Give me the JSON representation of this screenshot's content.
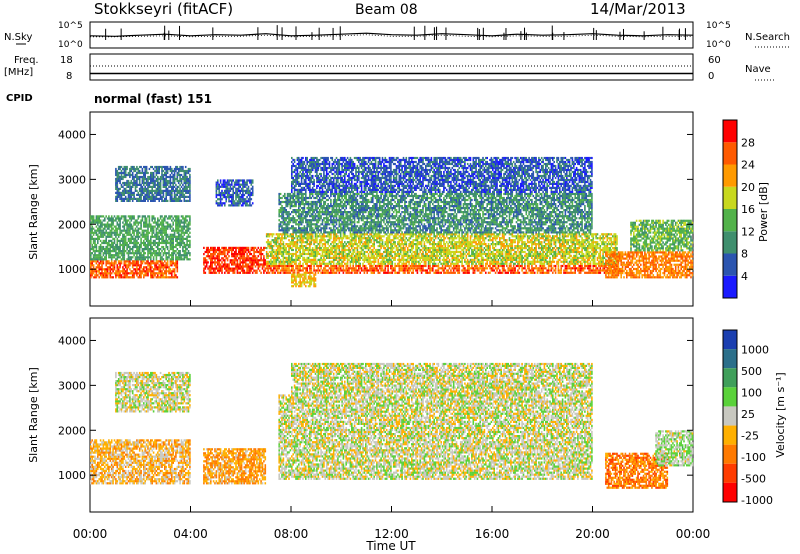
{
  "header": {
    "station": "Stokkseyri (fitACF)",
    "beam": "Beam 08",
    "date": "14/Mar/2013"
  },
  "params": {
    "nsky_label": "N.Sky",
    "nsearch_label": "N.Search",
    "freq_label": "Freq.",
    "freq_unit": "[MHz]",
    "nave_label": "Nave",
    "cpid_label": "CPID",
    "cpid_value": "normal (fast) 151",
    "noise_ticks": [
      "10^5",
      "10^0"
    ],
    "freq_ticks": [
      "18",
      "8"
    ],
    "nave_ticks": [
      "60",
      "0"
    ]
  },
  "chart_data": [
    {
      "type": "line",
      "title": "",
      "series": [
        {
          "name": "N.Sky",
          "values": [
            1.2,
            1.1,
            1.3,
            1.5,
            1.2,
            1.4,
            1.3,
            1.6,
            1.2,
            1.3,
            1.5,
            1.7,
            1.4,
            1.3,
            1.6,
            1.4,
            1.2,
            1.5,
            1.3,
            1.4,
            1.6,
            1.3,
            1.2,
            1.4,
            1.3
          ]
        },
        {
          "name": "N.Search",
          "values": [
            1.0,
            1.0,
            1.1,
            1.2,
            1.0,
            1.1,
            1.1,
            1.3,
            1.0,
            1.1,
            1.2,
            1.4,
            1.1,
            1.1,
            1.3,
            1.1,
            1.0,
            1.2,
            1.1,
            1.1,
            1.3,
            1.1,
            1.0,
            1.1,
            1.1
          ]
        }
      ],
      "x": [
        0,
        1,
        2,
        3,
        4,
        5,
        6,
        7,
        8,
        9,
        10,
        11,
        12,
        13,
        14,
        15,
        16,
        17,
        18,
        19,
        20,
        21,
        22,
        23,
        24
      ],
      "ylim": [
        0,
        5
      ],
      "yscale": "log"
    },
    {
      "type": "line",
      "title": "",
      "series": [
        {
          "name": "Freq.",
          "values": [
            10.5,
            10.5,
            10.5,
            10.5,
            10.5,
            10.5,
            10.5,
            10.5,
            10.5,
            10.5,
            10.5,
            10.5,
            10.5,
            10.5,
            10.5,
            10.5,
            10.5,
            10.5,
            10.5,
            10.5,
            10.5,
            10.5,
            10.5,
            10.5,
            10.5
          ]
        },
        {
          "name": "Nave",
          "values": [
            30,
            30,
            30,
            30,
            30,
            30,
            30,
            30,
            30,
            30,
            30,
            30,
            30,
            30,
            30,
            30,
            30,
            30,
            30,
            30,
            30,
            30,
            30,
            30,
            30
          ]
        }
      ],
      "x": [
        0,
        1,
        2,
        3,
        4,
        5,
        6,
        7,
        8,
        9,
        10,
        11,
        12,
        13,
        14,
        15,
        16,
        17,
        18,
        19,
        20,
        21,
        22,
        23,
        24
      ],
      "ylim": [
        8,
        18
      ]
    },
    {
      "type": "heatmap",
      "title": "",
      "xlabel": "",
      "ylabel": "Slant Range [km]",
      "ylim": [
        180,
        4500
      ],
      "yticks": [
        "1000",
        "2000",
        "3000",
        "4000"
      ],
      "colorbar_label": "Power [dB]",
      "colorbar_ticks": [
        "4",
        "8",
        "12",
        "16",
        "20",
        "24",
        "28"
      ],
      "colorscale": [
        "#1a1aff",
        "#2b55b0",
        "#3f8f6e",
        "#52b24a",
        "#c8d81e",
        "#ff9a00",
        "#ff5a00",
        "#ff0000"
      ],
      "x": [
        0,
        1,
        2,
        3,
        4,
        5,
        6,
        7,
        8,
        9,
        10,
        11,
        12,
        13,
        14,
        15,
        16,
        17,
        18,
        19,
        20,
        21,
        22,
        23
      ],
      "bands": [
        {
          "x_from": 0,
          "x_to": 3.5,
          "range_from": 800,
          "range_to": 1200,
          "value": 26
        },
        {
          "x_from": 0,
          "x_to": 4,
          "range_from": 1200,
          "range_to": 2200,
          "value": 12
        },
        {
          "x_from": 1,
          "x_to": 4,
          "range_from": 2500,
          "range_to": 3300,
          "value": 8
        },
        {
          "x_from": 4.5,
          "x_to": 7,
          "range_from": 900,
          "range_to": 1500,
          "value": 28
        },
        {
          "x_from": 5,
          "x_to": 6.5,
          "range_from": 2400,
          "range_to": 3000,
          "value": 6
        },
        {
          "x_from": 7,
          "x_to": 21,
          "range_from": 900,
          "range_to": 1100,
          "value": 26
        },
        {
          "x_from": 7,
          "x_to": 21,
          "range_from": 1100,
          "range_to": 1800,
          "value": 18
        },
        {
          "x_from": 7.5,
          "x_to": 20,
          "range_from": 1800,
          "range_to": 2700,
          "value": 10
        },
        {
          "x_from": 8,
          "x_to": 20,
          "range_from": 2700,
          "range_to": 3500,
          "value": 6
        },
        {
          "x_from": 8,
          "x_to": 9,
          "range_from": 600,
          "range_to": 900,
          "value": 20
        },
        {
          "x_from": 20.5,
          "x_to": 24,
          "range_from": 800,
          "range_to": 1400,
          "value": 24
        },
        {
          "x_from": 21.5,
          "x_to": 24,
          "range_from": 1400,
          "range_to": 2100,
          "value": 14
        }
      ]
    },
    {
      "type": "heatmap",
      "title": "",
      "xlabel": "Time UT",
      "ylabel": "Slant Range [km]",
      "ylim": [
        180,
        4500
      ],
      "yticks": [
        "1000",
        "2000",
        "3000",
        "4000"
      ],
      "xticks": [
        "00:00",
        "04:00",
        "08:00",
        "12:00",
        "16:00",
        "20:00",
        "00:00"
      ],
      "colorbar_label": "Velocity [m s⁻¹]",
      "colorbar_ticks": [
        "1000",
        "500",
        "100",
        "25",
        "-25",
        "-100",
        "-500",
        "-1000"
      ],
      "colorscale": [
        "#1b3fb0",
        "#2b6f8a",
        "#3f9f5a",
        "#5ad23a",
        "#c8c8c0",
        "#ffb000",
        "#ff7a00",
        "#ff3c00",
        "#ff0000"
      ],
      "x": [
        0,
        1,
        2,
        3,
        4,
        5,
        6,
        7,
        8,
        9,
        10,
        11,
        12,
        13,
        14,
        15,
        16,
        17,
        18,
        19,
        20,
        21,
        22,
        23
      ],
      "bands": [
        {
          "x_from": 0,
          "x_to": 4,
          "range_from": 800,
          "range_to": 1800,
          "value": -200
        },
        {
          "x_from": 1,
          "x_to": 4,
          "range_from": 2400,
          "range_to": 3300,
          "value": 0
        },
        {
          "x_from": 4.5,
          "x_to": 7,
          "range_from": 800,
          "range_to": 1600,
          "value": -300
        },
        {
          "x_from": 7.5,
          "x_to": 20,
          "range_from": 900,
          "range_to": 2800,
          "value": 0
        },
        {
          "x_from": 8,
          "x_to": 20,
          "range_from": 2800,
          "range_to": 3500,
          "value": 0
        },
        {
          "x_from": 20.5,
          "x_to": 23,
          "range_from": 700,
          "range_to": 1500,
          "value": -450
        },
        {
          "x_from": 22.5,
          "x_to": 24,
          "range_from": 1200,
          "range_to": 2000,
          "value": 100
        }
      ]
    }
  ]
}
